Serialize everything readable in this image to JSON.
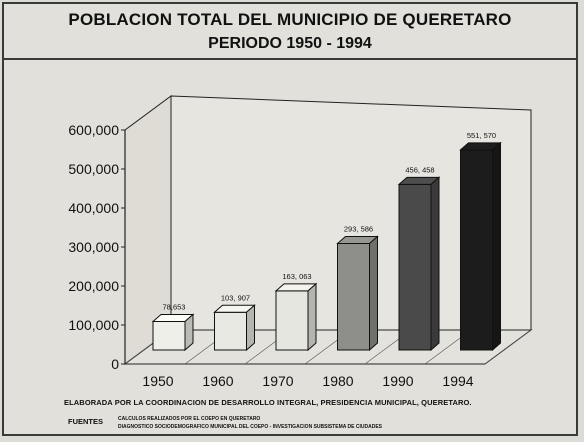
{
  "header": {
    "title": "POBLACION TOTAL DEL MUNICIPIO DE QUERETARO",
    "subtitle": "PERIODO 1950  - 1994"
  },
  "footer": {
    "credit": "ELABORADA POR LA COORDINACION DE DESARROLLO INTEGRAL, PRESIDENCIA MUNICIPAL, QUERETARO.",
    "sources_label": "FUENTES",
    "sources": [
      "CALCULOS REALIZADOS POR EL COEPO EN QUERETARO",
      "DIAGNOSTICO SOCIODEMOGRAFICO MUNICIPAL DEL COEPO - INVESTIGACION SUBSISTEMA DE CIUDADES"
    ]
  },
  "chart_data": {
    "type": "bar",
    "title": "POBLACION TOTAL DEL MUNICIPIO DE QUERETARO",
    "subtitle": "PERIODO 1950  - 1994",
    "categories": [
      "1950",
      "1960",
      "1970",
      "1980",
      "1990",
      "1994"
    ],
    "values": [
      78653,
      103907,
      163063,
      293586,
      456458,
      551570
    ],
    "data_labels": [
      "78,653",
      "103, 907",
      "163, 063",
      "293, 586",
      "456, 458",
      "551, 570"
    ],
    "yticks": [
      "0",
      "100,000",
      "200,000",
      "300,000",
      "400,000",
      "500,000",
      "600,000"
    ],
    "ylim": [
      0,
      600000
    ],
    "xlabel": "",
    "ylabel": "",
    "grid": false,
    "legend": "none",
    "bar_colors": [
      "#efefe9",
      "#e8e8e2",
      "#e6e6e0",
      "#8e8e8a",
      "#4a4a4a",
      "#1c1c1c"
    ]
  }
}
